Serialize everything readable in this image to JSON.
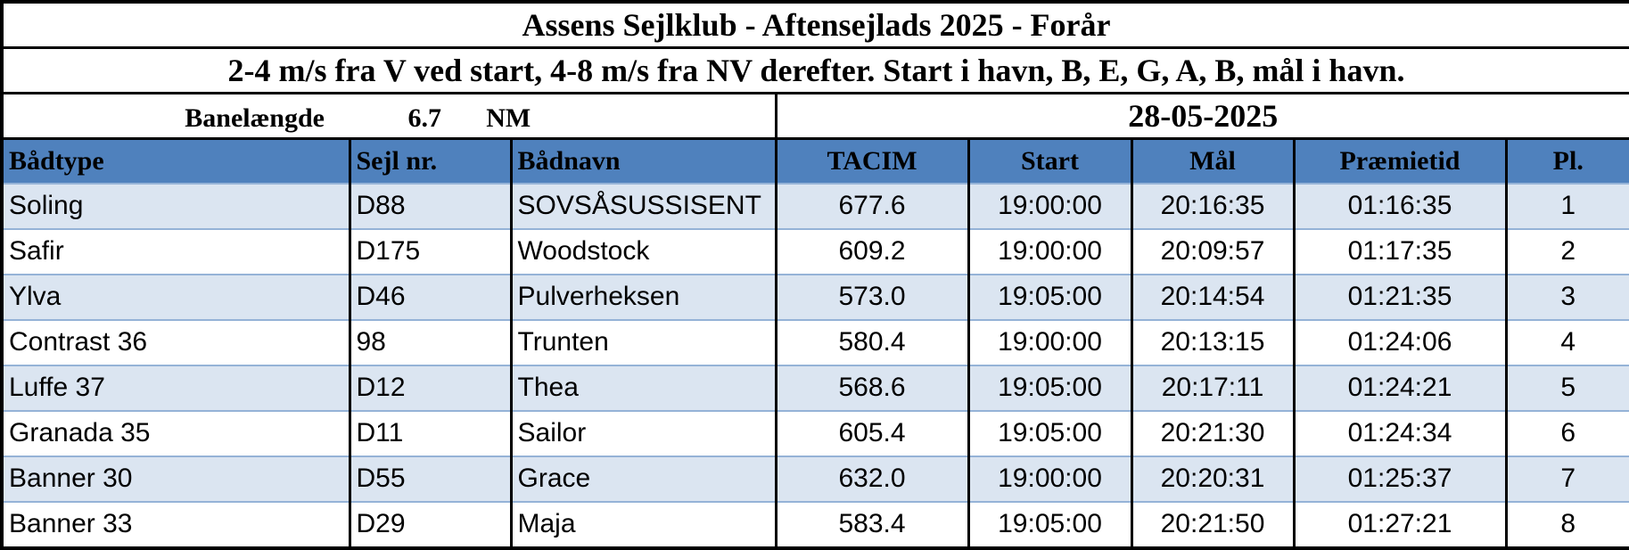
{
  "header": {
    "title": "Assens Sejlklub - Aftensejlads 2025 - Forår",
    "subtitle": "2-4 m/s fra V ved start, 4-8 m/s fra NV derefter. Start i havn, B, E, G, A, B, mål i havn.",
    "course_label": "Banelængde",
    "course_length": "6.7",
    "course_unit": "NM",
    "date": "28-05-2025"
  },
  "table": {
    "columns": [
      "Bådtype",
      "Sejl nr.",
      "Bådnavn",
      "TACIM",
      "Start",
      "Mål",
      "Præmietid",
      "Pl."
    ],
    "rows": [
      [
        "Soling",
        "D88",
        "SOVSÅSUSSISENT",
        "677.6",
        "19:00:00",
        "20:16:35",
        "01:16:35",
        "1"
      ],
      [
        "Safir",
        "D175",
        "Woodstock",
        "609.2",
        "19:00:00",
        "20:09:57",
        "01:17:35",
        "2"
      ],
      [
        "Ylva",
        "D46",
        "Pulverheksen",
        "573.0",
        "19:05:00",
        "20:14:54",
        "01:21:35",
        "3"
      ],
      [
        "Contrast 36",
        "98",
        "Trunten",
        "580.4",
        "19:00:00",
        "20:13:15",
        "01:24:06",
        "4"
      ],
      [
        "Luffe 37",
        "D12",
        "Thea",
        "568.6",
        "19:05:00",
        "20:17:11",
        "01:24:21",
        "5"
      ],
      [
        "Granada 35",
        "D11",
        "Sailor",
        "605.4",
        "19:05:00",
        "20:21:30",
        "01:24:34",
        "6"
      ],
      [
        "Banner 30",
        "D55",
        "Grace",
        "632.0",
        "19:00:00",
        "20:20:31",
        "01:25:37",
        "7"
      ],
      [
        "Banner 33",
        "D29",
        "Maja",
        "583.4",
        "19:05:00",
        "20:21:50",
        "01:27:21",
        "8"
      ]
    ]
  }
}
